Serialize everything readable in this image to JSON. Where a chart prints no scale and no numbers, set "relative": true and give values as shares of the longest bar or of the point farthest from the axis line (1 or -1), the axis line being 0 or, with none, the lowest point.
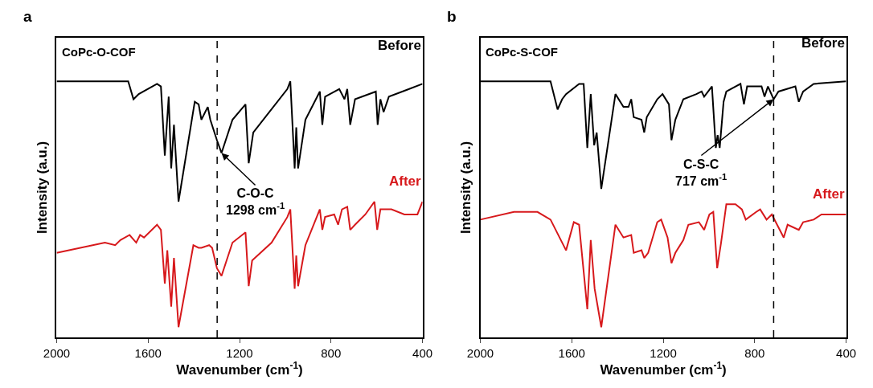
{
  "chart_data": [
    {
      "type": "line",
      "title": "a",
      "subtitle": "CoPc-O-COF",
      "xlabel": "Wavenumber (cm$^{-1}$)",
      "ylabel": "Intensity (a.u.)",
      "relative": true,
      "xlim": [
        2000,
        400
      ],
      "xticks": [
        2000,
        1600,
        1200,
        800,
        400
      ],
      "legend": false,
      "marker": "none",
      "ref_lines": [
        {
          "axis": "x",
          "value": 1298,
          "line_style": "dashed",
          "color": "#000000"
        }
      ],
      "annotations": [
        {
          "text": "C-O-C\n1298 cm$^{-1}$",
          "x": 1279,
          "y": 0.72
        }
      ],
      "series": [
        {
          "name": "Before",
          "color": "#000000",
          "x": [
            2000,
            1687,
            1664,
            1641,
            1561,
            1544,
            1527,
            1510,
            1499,
            1487,
            1467,
            1396,
            1379,
            1367,
            1339,
            1328,
            1299,
            1279,
            1231,
            1174,
            1160,
            1140,
            991,
            978,
            959,
            952,
            944,
            912,
            849,
            838,
            826,
            764,
            741,
            729,
            716,
            695,
            604,
            596,
            584,
            570,
            547,
            400
          ],
          "values": [
            1.0,
            1.0,
            0.93,
            0.95,
            0.99,
            0.98,
            0.71,
            0.94,
            0.66,
            0.83,
            0.53,
            0.92,
            0.91,
            0.85,
            0.9,
            0.85,
            0.77,
            0.72,
            0.85,
            0.91,
            0.68,
            0.8,
            0.97,
            1.0,
            0.66,
            0.82,
            0.66,
            0.85,
            0.96,
            0.83,
            0.94,
            0.97,
            0.93,
            0.97,
            0.83,
            0.93,
            0.96,
            0.83,
            0.93,
            0.88,
            0.94,
            0.99
          ]
        },
        {
          "name": "After",
          "color": "#d7191c",
          "x": [
            2000,
            1789,
            1744,
            1721,
            1681,
            1652,
            1635,
            1618,
            1561,
            1544,
            1527,
            1516,
            1499,
            1487,
            1467,
            1402,
            1379,
            1367,
            1333,
            1320,
            1299,
            1279,
            1231,
            1174,
            1160,
            1145,
            1060,
            991,
            978,
            959,
            952,
            944,
            912,
            849,
            838,
            826,
            786,
            769,
            752,
            729,
            716,
            695,
            650,
            610,
            598,
            584,
            536,
            479,
            422,
            400
          ],
          "values": [
            0.33,
            0.37,
            0.36,
            0.38,
            0.4,
            0.37,
            0.4,
            0.39,
            0.44,
            0.42,
            0.21,
            0.34,
            0.12,
            0.31,
            0.04,
            0.36,
            0.35,
            0.35,
            0.36,
            0.35,
            0.27,
            0.24,
            0.37,
            0.41,
            0.2,
            0.3,
            0.37,
            0.47,
            0.5,
            0.19,
            0.32,
            0.2,
            0.36,
            0.5,
            0.42,
            0.47,
            0.48,
            0.44,
            0.5,
            0.51,
            0.42,
            0.44,
            0.48,
            0.53,
            0.42,
            0.5,
            0.5,
            0.48,
            0.48,
            0.53
          ]
        }
      ]
    },
    {
      "type": "line",
      "title": "b",
      "subtitle": "CoPc-S-COF",
      "xlabel": "Wavenumber (cm$^{-1}$)",
      "ylabel": "Intensity (a.u.)",
      "relative": true,
      "xlim": [
        2000,
        400
      ],
      "xticks": [
        2000,
        1600,
        1200,
        800,
        400
      ],
      "legend": false,
      "marker": "none",
      "ref_lines": [
        {
          "axis": "x",
          "value": 717,
          "line_style": "dashed",
          "color": "#000000"
        }
      ],
      "annotations": [
        {
          "text": "C-S-C\n717 cm$^{-1}$",
          "x": 717,
          "y": 0.93
        }
      ],
      "series": [
        {
          "name": "Before",
          "color": "#000000",
          "x": [
            2000,
            1693,
            1662,
            1642,
            1625,
            1568,
            1548,
            1532,
            1517,
            1502,
            1491,
            1471,
            1409,
            1374,
            1352,
            1340,
            1329,
            1295,
            1283,
            1272,
            1226,
            1203,
            1175,
            1164,
            1147,
            1112,
            1055,
            1032,
            1021,
            987,
            970,
            962,
            953,
            936,
            924,
            862,
            847,
            833,
            770,
            757,
            742,
            717,
            696,
            622,
            607,
            588,
            542,
            400
          ],
          "values": [
            1.0,
            1.0,
            0.89,
            0.93,
            0.95,
            0.99,
            0.99,
            0.74,
            0.95,
            0.75,
            0.8,
            0.58,
            0.95,
            0.9,
            0.9,
            0.93,
            0.86,
            0.85,
            0.8,
            0.86,
            0.93,
            0.95,
            0.91,
            0.77,
            0.85,
            0.93,
            0.95,
            0.96,
            0.94,
            0.98,
            0.74,
            0.79,
            0.74,
            0.92,
            0.96,
            0.99,
            0.91,
            0.98,
            0.98,
            0.94,
            0.98,
            0.93,
            0.96,
            0.98,
            0.92,
            0.96,
            0.99,
            1.0
          ]
        },
        {
          "name": "After",
          "color": "#d7191c",
          "x": [
            2000,
            1853,
            1796,
            1750,
            1693,
            1625,
            1591,
            1568,
            1532,
            1517,
            1500,
            1471,
            1409,
            1374,
            1340,
            1329,
            1295,
            1283,
            1266,
            1226,
            1209,
            1181,
            1164,
            1147,
            1112,
            1090,
            1044,
            1021,
            998,
            981,
            964,
            947,
            924,
            884,
            856,
            839,
            793,
            776,
            748,
            725,
            673,
            656,
            607,
            588,
            542,
            508,
            451,
            400
          ],
          "values": [
            0.46,
            0.49,
            0.49,
            0.49,
            0.46,
            0.34,
            0.45,
            0.44,
            0.11,
            0.38,
            0.19,
            0.04,
            0.44,
            0.39,
            0.4,
            0.33,
            0.34,
            0.31,
            0.33,
            0.45,
            0.46,
            0.39,
            0.29,
            0.33,
            0.38,
            0.44,
            0.45,
            0.42,
            0.48,
            0.49,
            0.27,
            0.37,
            0.52,
            0.52,
            0.5,
            0.46,
            0.49,
            0.5,
            0.46,
            0.48,
            0.39,
            0.44,
            0.42,
            0.45,
            0.46,
            0.48,
            0.48,
            0.48
          ]
        }
      ]
    }
  ]
}
